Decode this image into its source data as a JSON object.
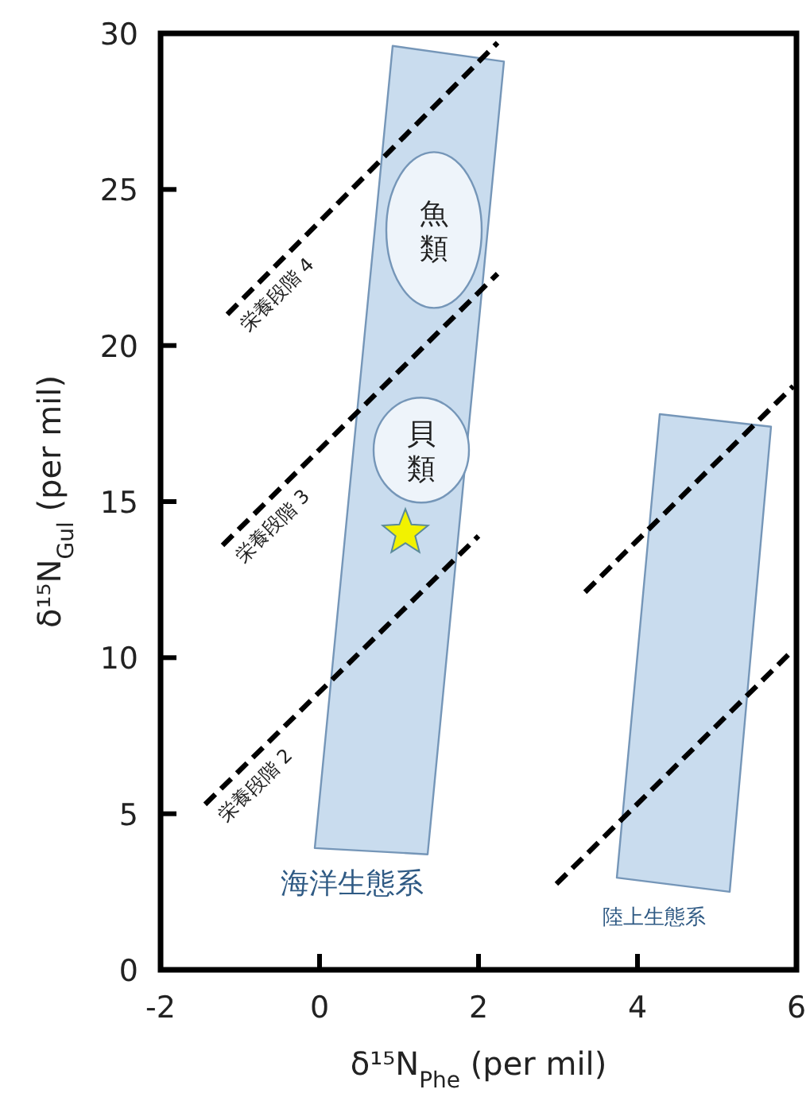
{
  "chart_data": {
    "type": "line",
    "xlabel": "δ¹⁵N$_{Phe}$ (per mil)",
    "ylabel": "δ¹⁵N$_{Gul}$ (per mil)",
    "xlim": [
      -2,
      6
    ],
    "ylim": [
      0,
      30
    ],
    "xticks": [
      -2,
      0,
      2,
      4,
      6
    ],
    "yticks": [
      0,
      5,
      10,
      15,
      20,
      25,
      30
    ],
    "grid": false,
    "legend": false,
    "series": [
      {
        "type": "area",
        "name": "海洋生態系",
        "color": "#c9dcee",
        "x": [
          -0.06,
          0.92,
          2.32,
          1.36,
          -0.06
        ],
        "values": [
          3.9,
          29.6,
          29.1,
          3.7,
          3.9
        ]
      },
      {
        "type": "area",
        "name": "陸上生態系",
        "color": "#c9dcee",
        "x": [
          3.74,
          4.28,
          5.68,
          5.16,
          3.74
        ],
        "values": [
          2.95,
          17.8,
          17.4,
          2.5,
          2.95
        ]
      },
      {
        "name": "栄養段階 4",
        "color": "#000000",
        "line_style": "dashed",
        "x": [
          -1.16,
          2.24
        ],
        "values": [
          21.0,
          29.7
        ]
      },
      {
        "name": "栄養段階 3",
        "color": "#000000",
        "line_style": "dashed",
        "x": [
          -1.22,
          2.24
        ],
        "values": [
          13.6,
          22.3
        ]
      },
      {
        "name": "栄養段階 2",
        "color": "#000000",
        "line_style": "dashed",
        "x": [
          -1.44,
          2.0
        ],
        "values": [
          5.3,
          13.9
        ]
      },
      {
        "color": "#000000",
        "line_style": "dashed",
        "x": [
          3.34,
          5.96
        ],
        "values": [
          12.1,
          18.7
        ]
      },
      {
        "color": "#000000",
        "line_style": "dashed",
        "x": [
          2.98,
          5.94
        ],
        "values": [
          2.75,
          10.2
        ]
      },
      {
        "type": "scatter",
        "color": "#f2f200",
        "marker": "star",
        "x": [
          1.08
        ],
        "values": [
          14.0
        ]
      }
    ],
    "annotations": [
      "魚類",
      "貝類"
    ]
  }
}
